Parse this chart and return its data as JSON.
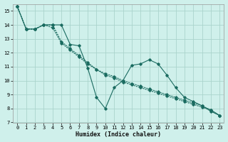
{
  "xlabel": "Humidex (Indice chaleur)",
  "bg_color": "#cff0eb",
  "grid_color": "#aad4cc",
  "line_color": "#1a6b60",
  "xlim": [
    -0.5,
    23.5
  ],
  "ylim": [
    7,
    15.5
  ],
  "yticks": [
    7,
    8,
    9,
    10,
    11,
    12,
    13,
    14,
    15
  ],
  "xticks": [
    0,
    1,
    2,
    3,
    4,
    5,
    6,
    7,
    8,
    9,
    10,
    11,
    12,
    13,
    14,
    15,
    16,
    17,
    18,
    19,
    20,
    21,
    22,
    23
  ],
  "line1_x": [
    0,
    1,
    2,
    3,
    4,
    5,
    6,
    7,
    8,
    9,
    10,
    11,
    12,
    13,
    14,
    15,
    16,
    17,
    18,
    19,
    20,
    21,
    22,
    23
  ],
  "line1_y": [
    15.3,
    13.7,
    13.7,
    14.0,
    14.0,
    14.0,
    12.6,
    12.5,
    10.9,
    8.8,
    8.0,
    9.5,
    10.0,
    11.1,
    11.2,
    11.5,
    11.2,
    10.4,
    9.5,
    8.8,
    8.5,
    8.2,
    7.8,
    7.5
  ],
  "line2_x": [
    0,
    1,
    2,
    3,
    4,
    5,
    6,
    7,
    8,
    9,
    10,
    11,
    12,
    13,
    14,
    15,
    16,
    17,
    18,
    19,
    20,
    21,
    22,
    23
  ],
  "line2_y": [
    15.3,
    13.7,
    13.7,
    14.0,
    14.0,
    12.8,
    12.3,
    11.8,
    11.3,
    10.8,
    10.5,
    10.3,
    10.0,
    9.8,
    9.6,
    9.4,
    9.2,
    9.0,
    8.8,
    8.6,
    8.4,
    8.2,
    7.9,
    7.5
  ],
  "line3_x": [
    0,
    1,
    2,
    3,
    4,
    5,
    6,
    7,
    8,
    9,
    10,
    11,
    12,
    13,
    14,
    15,
    16,
    17,
    18,
    19,
    20,
    21,
    22,
    23
  ],
  "line3_y": [
    15.3,
    13.7,
    13.7,
    14.0,
    13.8,
    12.7,
    12.2,
    11.7,
    11.2,
    10.8,
    10.4,
    10.2,
    9.9,
    9.7,
    9.5,
    9.3,
    9.1,
    8.9,
    8.7,
    8.5,
    8.3,
    8.1,
    7.9,
    7.5
  ],
  "xlabel_fontsize": 6,
  "tick_fontsize": 5,
  "lw": 0.8,
  "ms": 1.8
}
